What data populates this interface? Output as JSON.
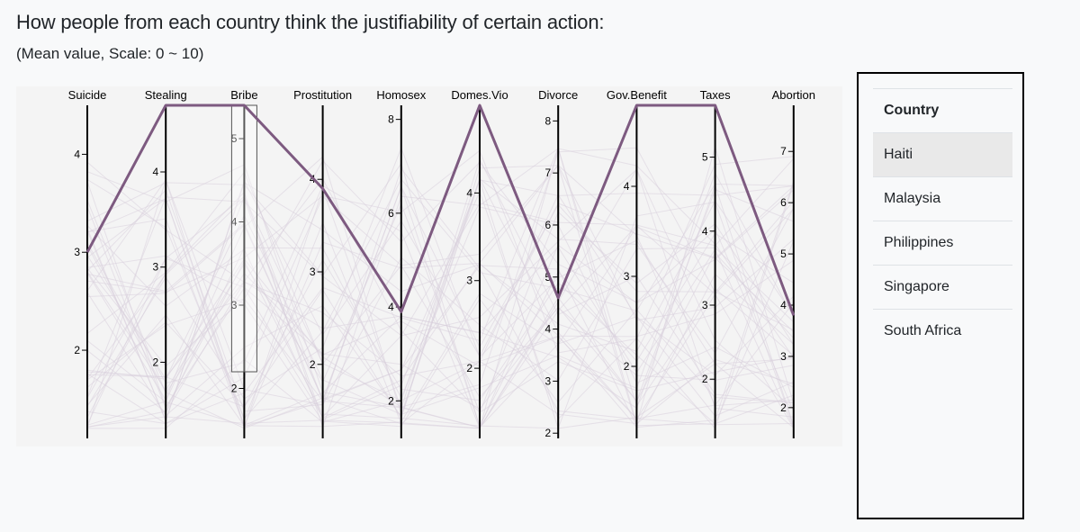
{
  "title": "How people from each country think the justifiability of certain action:",
  "subtitle": "(Mean value, Scale: 0 ~ 10)",
  "panel": {
    "header": "Country",
    "countries": [
      "Haiti",
      "Malaysia",
      "Philippines",
      "Singapore",
      "South Africa"
    ],
    "selected": "Haiti"
  },
  "colors": {
    "highlight": "#7d5a80",
    "background_lines": "#d8d0dc",
    "axis": "#000000",
    "plot_background": "#f4f4f4"
  },
  "chart_data": {
    "type": "parallel-coordinates",
    "axes": [
      {
        "name": "Suicide",
        "domain": [
          1.1,
          4.5
        ],
        "ticks": [
          2,
          3,
          4
        ]
      },
      {
        "name": "Stealing",
        "domain": [
          1.2,
          4.7
        ],
        "ticks": [
          2,
          3,
          4
        ]
      },
      {
        "name": "Bribe",
        "domain": [
          1.4,
          5.4
        ],
        "ticks": [
          2,
          3,
          4,
          5
        ]
      },
      {
        "name": "Prostitution",
        "domain": [
          1.2,
          4.8
        ],
        "ticks": [
          2,
          3,
          4
        ]
      },
      {
        "name": "Homosex",
        "domain": [
          1.2,
          8.3
        ],
        "ticks": [
          2,
          4,
          6,
          8
        ]
      },
      {
        "name": "Domes.Vio",
        "domain": [
          1.2,
          5.0
        ],
        "ticks": [
          2,
          3,
          4
        ]
      },
      {
        "name": "Divorce",
        "domain": [
          1.9,
          8.3
        ],
        "ticks": [
          2,
          3,
          4,
          5,
          6,
          7,
          8
        ]
      },
      {
        "name": "Gov.Benefit",
        "domain": [
          1.2,
          4.9
        ],
        "ticks": [
          2,
          3,
          4
        ]
      },
      {
        "name": "Taxes",
        "domain": [
          1.2,
          5.7
        ],
        "ticks": [
          2,
          3,
          4,
          5
        ]
      },
      {
        "name": "Abortion",
        "domain": [
          1.4,
          7.9
        ],
        "ticks": [
          2,
          3,
          4,
          5,
          6,
          7
        ]
      }
    ],
    "highlighted": {
      "name": "Haiti",
      "values": [
        3.0,
        4.7,
        5.4,
        3.9,
        3.9,
        5.0,
        4.6,
        4.9,
        5.7,
        3.8
      ]
    },
    "brush": {
      "axis": "Bribe",
      "range": [
        2.2,
        5.4
      ]
    }
  }
}
